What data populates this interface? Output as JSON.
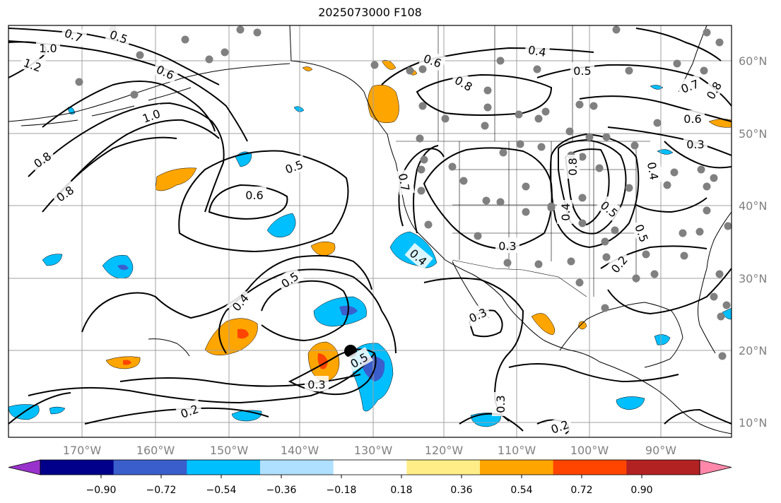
{
  "title": "2025073000 F108",
  "map": {
    "lat_labels": [
      "60°N",
      "50°N",
      "40°N",
      "30°N",
      "20°N",
      "10°N"
    ],
    "lon_labels": [
      "170°W",
      "160°W",
      "150°W",
      "140°W",
      "130°W",
      "120°W",
      "110°W",
      "100°W",
      "90°W"
    ],
    "label_color": "#808080",
    "contour_color": "#000000",
    "gridline_color": "#a0a0a0",
    "station_color": "#808080",
    "center_marker_color": "#000000",
    "contour_labels": [
      "1.0",
      "1.2",
      "0.7",
      "0.5",
      "0.6",
      "1.0",
      "0.8",
      "0.8",
      "0.5",
      "0.6",
      "0.6",
      "0.8",
      "0.4",
      "0.5",
      "0.7",
      "0.8",
      "0.6",
      "0.3",
      "0.4",
      "0.7",
      "0.8",
      "0.4",
      "0.5",
      "0.5",
      "0.3",
      "0.2",
      "0.4",
      "0.5",
      "0.4",
      "0.3",
      "0.5",
      "0.3",
      "0.2",
      "0.3",
      "0.2"
    ]
  },
  "colorbar": {
    "tick_labels": [
      "−0.90",
      "−0.72",
      "−0.54",
      "−0.36",
      "−0.18",
      "0.18",
      "0.36",
      "0.54",
      "0.72",
      "0.90"
    ],
    "colors": [
      "#9932cc",
      "#00008b",
      "#3a5fcd",
      "#00bfff",
      "#b0e0ff",
      "#ffffff",
      "#ffee88",
      "#ffa500",
      "#ff4500",
      "#b22222",
      "#ff88aa"
    ]
  },
  "shading": {
    "neg_light": "#b0e0ff",
    "neg_mid": "#00bfff",
    "neg_dark": "#3a5fcd",
    "pos_light": "#ffee88",
    "pos_mid": "#ffa500",
    "pos_dark": "#ff4500"
  }
}
